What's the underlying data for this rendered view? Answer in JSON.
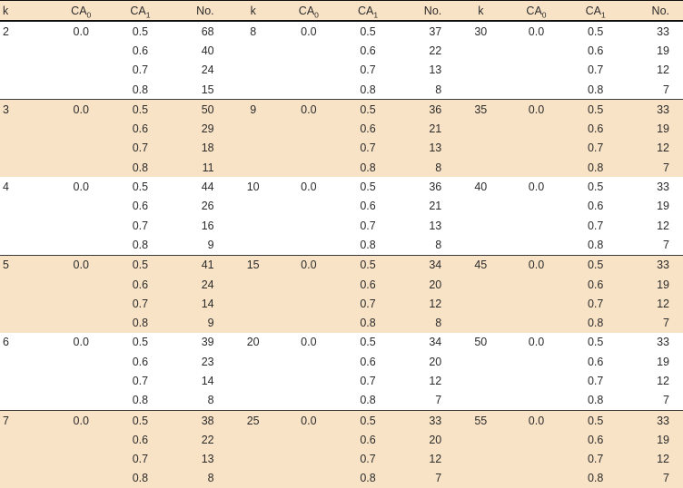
{
  "table": {
    "header": {
      "k": "k",
      "ca0": {
        "base": "CA",
        "sub": "0"
      },
      "ca1": {
        "base": "CA",
        "sub": "1"
      },
      "no": "No."
    },
    "colors": {
      "band": "#f9e3c6",
      "rule": "#3a3a3a",
      "border": "#111111",
      "text": "#2b2b2b"
    },
    "panels": [
      {
        "groups": [
          {
            "k": "2",
            "ca0": "0.0",
            "rows": [
              [
                "0.5",
                "68"
              ],
              [
                "0.6",
                "40"
              ],
              [
                "0.7",
                "24"
              ],
              [
                "0.8",
                "15"
              ]
            ]
          },
          {
            "k": "3",
            "ca0": "0.0",
            "rows": [
              [
                "0.5",
                "50"
              ],
              [
                "0.6",
                "29"
              ],
              [
                "0.7",
                "18"
              ],
              [
                "0.8",
                "11"
              ]
            ]
          },
          {
            "k": "4",
            "ca0": "0.0",
            "rows": [
              [
                "0.5",
                "44"
              ],
              [
                "0.6",
                "26"
              ],
              [
                "0.7",
                "16"
              ],
              [
                "0.8",
                "9"
              ]
            ]
          },
          {
            "k": "5",
            "ca0": "0.0",
            "rows": [
              [
                "0.5",
                "41"
              ],
              [
                "0.6",
                "24"
              ],
              [
                "0.7",
                "14"
              ],
              [
                "0.8",
                "9"
              ]
            ]
          },
          {
            "k": "6",
            "ca0": "0.0",
            "rows": [
              [
                "0.5",
                "39"
              ],
              [
                "0.6",
                "23"
              ],
              [
                "0.7",
                "14"
              ],
              [
                "0.8",
                "8"
              ]
            ]
          },
          {
            "k": "7",
            "ca0": "0.0",
            "rows": [
              [
                "0.5",
                "38"
              ],
              [
                "0.6",
                "22"
              ],
              [
                "0.7",
                "13"
              ],
              [
                "0.8",
                "8"
              ]
            ]
          }
        ]
      },
      {
        "groups": [
          {
            "k": "8",
            "ca0": "0.0",
            "rows": [
              [
                "0.5",
                "37"
              ],
              [
                "0.6",
                "22"
              ],
              [
                "0.7",
                "13"
              ],
              [
                "0.8",
                "8"
              ]
            ]
          },
          {
            "k": "9",
            "ca0": "0.0",
            "rows": [
              [
                "0.5",
                "36"
              ],
              [
                "0.6",
                "21"
              ],
              [
                "0.7",
                "13"
              ],
              [
                "0.8",
                "8"
              ]
            ]
          },
          {
            "k": "10",
            "ca0": "0.0",
            "rows": [
              [
                "0.5",
                "36"
              ],
              [
                "0.6",
                "21"
              ],
              [
                "0.7",
                "13"
              ],
              [
                "0.8",
                "8"
              ]
            ]
          },
          {
            "k": "15",
            "ca0": "0.0",
            "rows": [
              [
                "0.5",
                "34"
              ],
              [
                "0.6",
                "20"
              ],
              [
                "0.7",
                "12"
              ],
              [
                "0.8",
                "8"
              ]
            ]
          },
          {
            "k": "20",
            "ca0": "0.0",
            "rows": [
              [
                "0.5",
                "34"
              ],
              [
                "0.6",
                "20"
              ],
              [
                "0.7",
                "12"
              ],
              [
                "0.8",
                "7"
              ]
            ]
          },
          {
            "k": "25",
            "ca0": "0.0",
            "rows": [
              [
                "0.5",
                "33"
              ],
              [
                "0.6",
                "20"
              ],
              [
                "0.7",
                "12"
              ],
              [
                "0.8",
                "7"
              ]
            ]
          }
        ]
      },
      {
        "groups": [
          {
            "k": "30",
            "ca0": "0.0",
            "rows": [
              [
                "0.5",
                "33"
              ],
              [
                "0.6",
                "19"
              ],
              [
                "0.7",
                "12"
              ],
              [
                "0.8",
                "7"
              ]
            ]
          },
          {
            "k": "35",
            "ca0": "0.0",
            "rows": [
              [
                "0.5",
                "33"
              ],
              [
                "0.6",
                "19"
              ],
              [
                "0.7",
                "12"
              ],
              [
                "0.8",
                "7"
              ]
            ]
          },
          {
            "k": "40",
            "ca0": "0.0",
            "rows": [
              [
                "0.5",
                "33"
              ],
              [
                "0.6",
                "19"
              ],
              [
                "0.7",
                "12"
              ],
              [
                "0.8",
                "7"
              ]
            ]
          },
          {
            "k": "45",
            "ca0": "0.0",
            "rows": [
              [
                "0.5",
                "33"
              ],
              [
                "0.6",
                "19"
              ],
              [
                "0.7",
                "12"
              ],
              [
                "0.8",
                "7"
              ]
            ]
          },
          {
            "k": "50",
            "ca0": "0.0",
            "rows": [
              [
                "0.5",
                "33"
              ],
              [
                "0.6",
                "19"
              ],
              [
                "0.7",
                "12"
              ],
              [
                "0.8",
                "7"
              ]
            ]
          },
          {
            "k": "55",
            "ca0": "0.0",
            "rows": [
              [
                "0.5",
                "33"
              ],
              [
                "0.6",
                "19"
              ],
              [
                "0.7",
                "12"
              ],
              [
                "0.8",
                "7"
              ]
            ]
          }
        ]
      }
    ]
  }
}
